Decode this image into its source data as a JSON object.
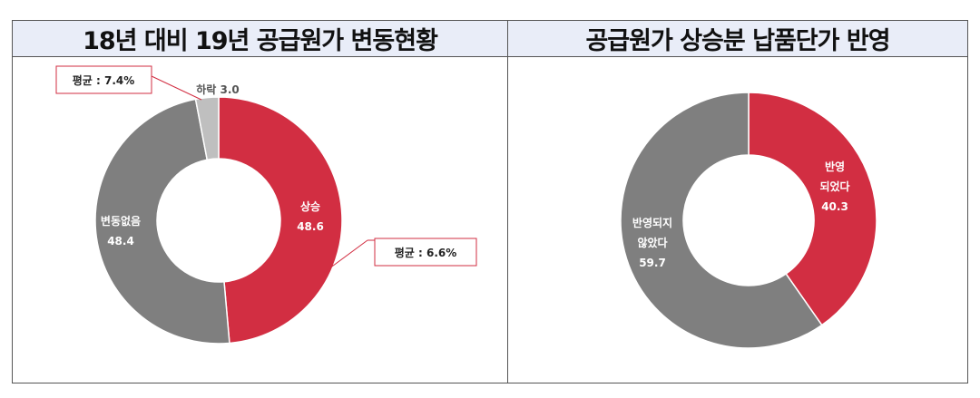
{
  "chart_data": [
    {
      "type": "pie",
      "donut": true,
      "title": "18년 대비 19년 공급원가 변동현황",
      "slices": [
        {
          "label": "상승",
          "value": 48.6,
          "color": "#d22e42"
        },
        {
          "label": "변동없음",
          "value": 48.4,
          "color": "#7f7f7f"
        },
        {
          "label": "하락",
          "value": 3.0,
          "color": "#bfbfbf"
        }
      ],
      "annotations": [
        {
          "text": "평균 : 7.4%",
          "target": "하락"
        },
        {
          "text": "평균 : 6.6%",
          "target": "상승"
        }
      ]
    },
    {
      "type": "pie",
      "donut": true,
      "title": "공급원가 상승분 납품단가 반영",
      "slices": [
        {
          "label": "반영 되었다",
          "value": 40.3,
          "color": "#d22e42"
        },
        {
          "label": "반영되지 않았다",
          "value": 59.7,
          "color": "#7f7f7f"
        }
      ]
    }
  ]
}
